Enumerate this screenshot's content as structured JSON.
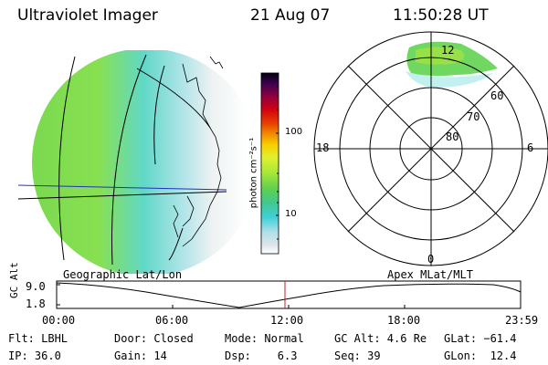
{
  "header": {
    "title": "Ultraviolet Imager",
    "date": "21 Aug 07",
    "time": "11:50:28 UT"
  },
  "colorbar": {
    "unit_label": "photon cm⁻²s⁻¹",
    "ticks": [
      "100",
      "10"
    ],
    "colors": [
      "#ffffff",
      "#e8e8ee",
      "#c8d8e0",
      "#a8e0e8",
      "#60d8e0",
      "#40c8a0",
      "#50d060",
      "#80e040",
      "#b8f040",
      "#e0f040",
      "#f8e000",
      "#f8b800",
      "#f08000",
      "#e84000",
      "#d80000",
      "#b00020",
      "#800040",
      "#500060",
      "#200040",
      "#000000"
    ]
  },
  "polar": {
    "lat_labels": [
      "60",
      "70",
      "80"
    ],
    "mlt_labels": {
      "top": "12",
      "left": "18",
      "right": "6",
      "bottom": "0"
    }
  },
  "timeline": {
    "left_title": "Geographic Lat/Lon",
    "right_title": "Apex MLat/MLT",
    "ylabel": "GC Alt",
    "yticks": [
      "9.0",
      "1.8"
    ],
    "xticks": [
      "00:00",
      "06:00",
      "12:00",
      "18:00",
      "23:59"
    ],
    "marker_color": "#c02020"
  },
  "status": {
    "filter": "Flt: LBHL",
    "ip": "IP: 36.0",
    "door": "Door: Closed",
    "gain": "Gain: 14",
    "mode": "Mode: Normal",
    "dsp": "Dsp:    6.3",
    "gcalt": "GC Alt: 4.6 Re",
    "seq": "Seq: 39",
    "glat": "GLat: −61.4",
    "glon": "GLon:  12.4"
  }
}
